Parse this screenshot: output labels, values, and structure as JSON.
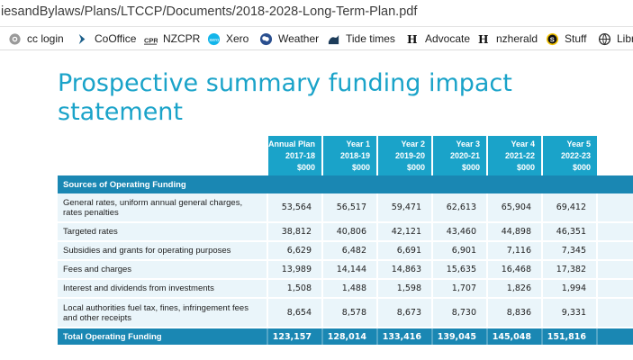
{
  "browser": {
    "url": "iesandBylaws/Plans/LTCCP/Documents/2018-2028-Long-Term-Plan.pdf",
    "bookmarks": [
      {
        "label": "cc login",
        "icon": "globe-gray-icon"
      },
      {
        "label": "CoOffice",
        "icon": "chevron-icon"
      },
      {
        "label": "NZCPR",
        "icon": "cpr-icon"
      },
      {
        "label": "Xero",
        "icon": "xero-icon"
      },
      {
        "label": "Weather",
        "icon": "weather-icon"
      },
      {
        "label": "Tide times",
        "icon": "tide-icon"
      },
      {
        "label": "Advocate",
        "icon": "newspaper-icon"
      },
      {
        "label": "nzherald",
        "icon": "newspaper-icon"
      },
      {
        "label": "Stuff",
        "icon": "stuff-icon"
      },
      {
        "label": "Libr",
        "icon": "globe-icon"
      }
    ]
  },
  "document": {
    "title_line1": "Prospective summary funding impact",
    "title_line2": "statement",
    "columns": [
      {
        "l1": "Annual Plan",
        "l2": "2017-18",
        "l3": "$000"
      },
      {
        "l1": "Year 1",
        "l2": "2018-19",
        "l3": "$000"
      },
      {
        "l1": "Year 2",
        "l2": "2019-20",
        "l3": "$000"
      },
      {
        "l1": "Year 3",
        "l2": "2020-21",
        "l3": "$000"
      },
      {
        "l1": "Year 4",
        "l2": "2021-22",
        "l3": "$000"
      },
      {
        "l1": "Year 5",
        "l2": "2022-23",
        "l3": "$000"
      }
    ],
    "section_title": "Sources of Operating Funding",
    "rows": [
      {
        "label": "General rates, uniform annual general charges, rates penalties",
        "values": [
          "53,564",
          "56,517",
          "59,471",
          "62,613",
          "65,904",
          "69,412"
        ]
      },
      {
        "label": "Targeted rates",
        "values": [
          "38,812",
          "40,806",
          "42,121",
          "43,460",
          "44,898",
          "46,351"
        ]
      },
      {
        "label": "Subsidies and grants for operating purposes",
        "values": [
          "6,629",
          "6,482",
          "6,691",
          "6,901",
          "7,116",
          "7,345"
        ]
      },
      {
        "label": "Fees and charges",
        "values": [
          "13,989",
          "14,144",
          "14,863",
          "15,635",
          "16,468",
          "17,382"
        ]
      },
      {
        "label": "Interest and dividends from investments",
        "values": [
          "1,508",
          "1,488",
          "1,598",
          "1,707",
          "1,826",
          "1,994"
        ]
      },
      {
        "label": "Local authorities fuel tax, fines, infringement fees and other receipts",
        "values": [
          "8,654",
          "8,578",
          "8,673",
          "8,730",
          "8,836",
          "9,331"
        ]
      }
    ],
    "total": {
      "label": "Total Operating Funding",
      "values": [
        "123,157",
        "128,014",
        "133,416",
        "139,045",
        "145,048",
        "151,816"
      ]
    }
  }
}
